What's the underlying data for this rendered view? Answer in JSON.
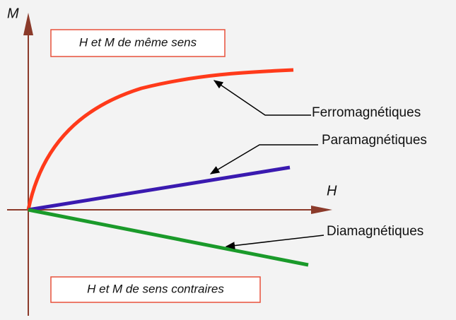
{
  "axes": {
    "y_label": "M",
    "x_label": "H"
  },
  "boxes": [
    {
      "text": "H et M de même sens"
    },
    {
      "text": "H et M de sens contraires"
    }
  ],
  "curves": [
    {
      "label": "Ferromagnétiques"
    },
    {
      "label": "Paramagnétiques"
    },
    {
      "label": "Diamagnétiques"
    }
  ]
}
